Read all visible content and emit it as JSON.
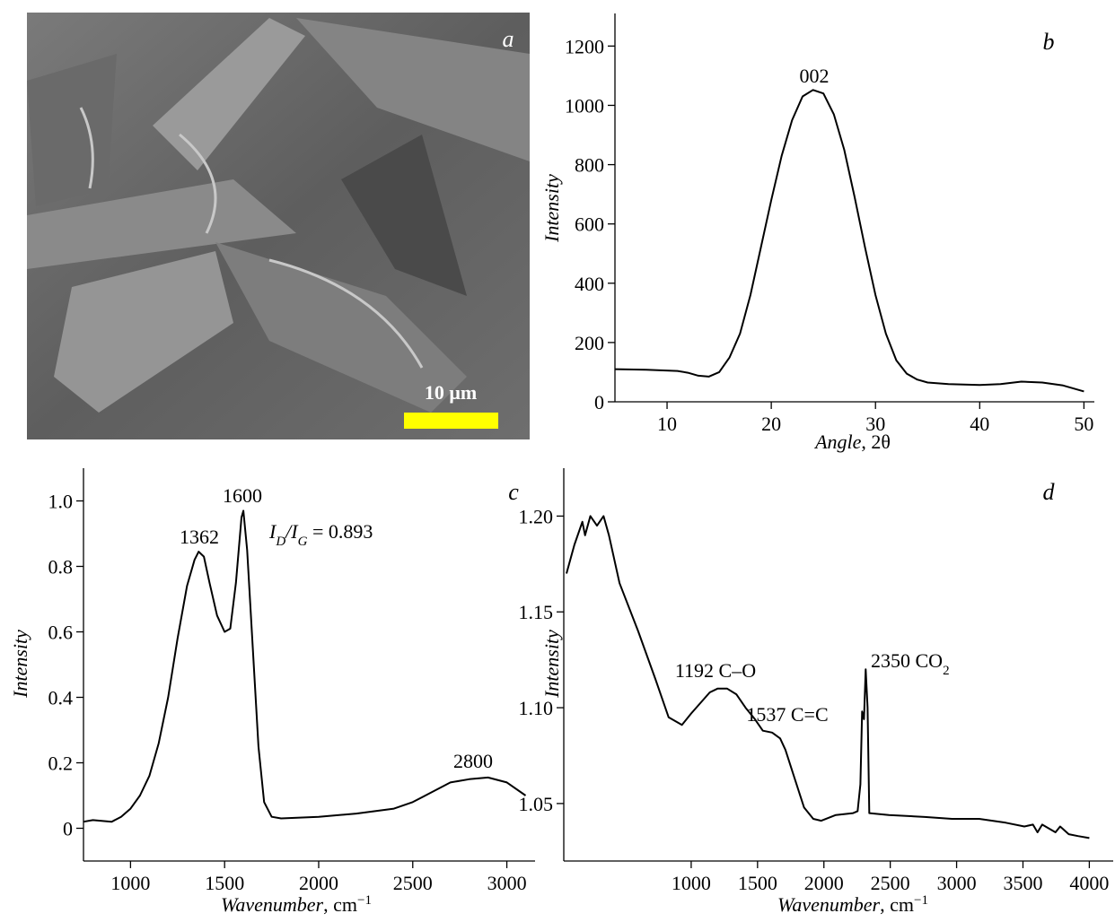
{
  "chart_data": [
    {
      "type": "image",
      "label": "a",
      "scale_bar": "10 μm"
    },
    {
      "type": "line",
      "label": "b",
      "xlabel": [
        "Angle",
        ", 2θ"
      ],
      "ylabel": "Intensity",
      "annotations": [
        [
          "002"
        ]
      ],
      "x": [
        5,
        8,
        11,
        12,
        13,
        14,
        15,
        16,
        17,
        18,
        19,
        20,
        21,
        22,
        23,
        24,
        25,
        26,
        27,
        28,
        29,
        30,
        31,
        32,
        33,
        34,
        35,
        37,
        40,
        42,
        44,
        46,
        48,
        50
      ],
      "values": [
        110,
        108,
        104,
        98,
        88,
        85,
        100,
        150,
        230,
        360,
        520,
        680,
        830,
        950,
        1030,
        1052,
        1040,
        970,
        850,
        690,
        520,
        360,
        230,
        140,
        95,
        75,
        65,
        60,
        57,
        60,
        68,
        65,
        55,
        35
      ],
      "color": "#000000",
      "xlim": [
        5,
        51
      ],
      "ylim": [
        0,
        1310
      ],
      "xticks": [
        10,
        20,
        30,
        40,
        50
      ],
      "yticks": [
        0,
        200,
        400,
        600,
        800,
        1000,
        1200
      ]
    },
    {
      "type": "line",
      "label": "c",
      "xlabel": [
        "Wavenumber",
        ", cm",
        "−1"
      ],
      "ylabel": "Intensity",
      "annotations": [
        [
          "1362"
        ],
        [
          "1600"
        ],
        [
          "I",
          "D",
          "/I",
          "G",
          " = 0.893"
        ],
        [
          "2800"
        ]
      ],
      "x": [
        750,
        800,
        900,
        950,
        1000,
        1050,
        1100,
        1150,
        1200,
        1250,
        1300,
        1340,
        1362,
        1390,
        1420,
        1460,
        1500,
        1530,
        1560,
        1590,
        1600,
        1620,
        1650,
        1680,
        1710,
        1750,
        1800,
        2000,
        2200,
        2400,
        2500,
        2600,
        2700,
        2800,
        2900,
        3000,
        3100
      ],
      "values": [
        0.02,
        0.025,
        0.02,
        0.035,
        0.06,
        0.1,
        0.16,
        0.26,
        0.4,
        0.58,
        0.74,
        0.82,
        0.845,
        0.83,
        0.75,
        0.65,
        0.6,
        0.61,
        0.75,
        0.95,
        0.97,
        0.85,
        0.55,
        0.25,
        0.08,
        0.035,
        0.03,
        0.035,
        0.045,
        0.06,
        0.08,
        0.11,
        0.14,
        0.15,
        0.155,
        0.14,
        0.1
      ],
      "color": "#000000",
      "xlim": [
        750,
        3150
      ],
      "ylim": [
        -0.1,
        1.1
      ],
      "xticks": [
        1000,
        1500,
        2000,
        2500,
        3000
      ],
      "yticks": [
        0,
        0.2,
        0.4,
        0.6,
        0.8,
        {
          "value": 1,
          "label": "1.0"
        }
      ]
    },
    {
      "type": "line",
      "label": "d",
      "xlabel": [
        "Wavenumber",
        ", cm",
        "−1"
      ],
      "ylabel": "Intensity",
      "annotations": [
        [
          "1192 C–O"
        ],
        [
          "1537 C=C"
        ],
        [
          "2350 CO",
          "2"
        ]
      ],
      "x": [
        60,
        120,
        180,
        200,
        240,
        290,
        340,
        380,
        460,
        600,
        730,
        830,
        930,
        1000,
        1140,
        1200,
        1270,
        1340,
        1410,
        1480,
        1540,
        1610,
        1670,
        1710,
        1780,
        1850,
        1920,
        1980,
        2090,
        2220,
        2254,
        2275,
        2288,
        2302,
        2315,
        2329,
        2342,
        2490,
        2760,
        2965,
        3170,
        3370,
        3510,
        3575,
        3610,
        3645,
        3745,
        3780,
        3845,
        3915,
        4000
      ],
      "values": [
        1.17,
        1.185,
        1.197,
        1.19,
        1.2,
        1.195,
        1.2,
        1.19,
        1.165,
        1.14,
        1.115,
        1.095,
        1.091,
        1.097,
        1.108,
        1.11,
        1.11,
        1.107,
        1.1,
        1.094,
        1.088,
        1.087,
        1.084,
        1.078,
        1.063,
        1.048,
        1.042,
        1.041,
        1.044,
        1.045,
        1.046,
        1.06,
        1.098,
        1.094,
        1.12,
        1.1,
        1.045,
        1.044,
        1.043,
        1.042,
        1.042,
        1.04,
        1.038,
        1.039,
        1.035,
        1.039,
        1.035,
        1.038,
        1.034,
        1.033,
        1.032
      ],
      "color": "#000000",
      "xlim": [
        40,
        4180
      ],
      "ylim": [
        1.02,
        1.225
      ],
      "xticks": [
        1000,
        1500,
        2000,
        2500,
        3000,
        3500,
        4000
      ],
      "yticks": [
        1.05,
        {
          "value": 1.1,
          "label": "1.10"
        },
        1.15,
        {
          "value": 1.2,
          "label": "1.20"
        }
      ]
    }
  ]
}
